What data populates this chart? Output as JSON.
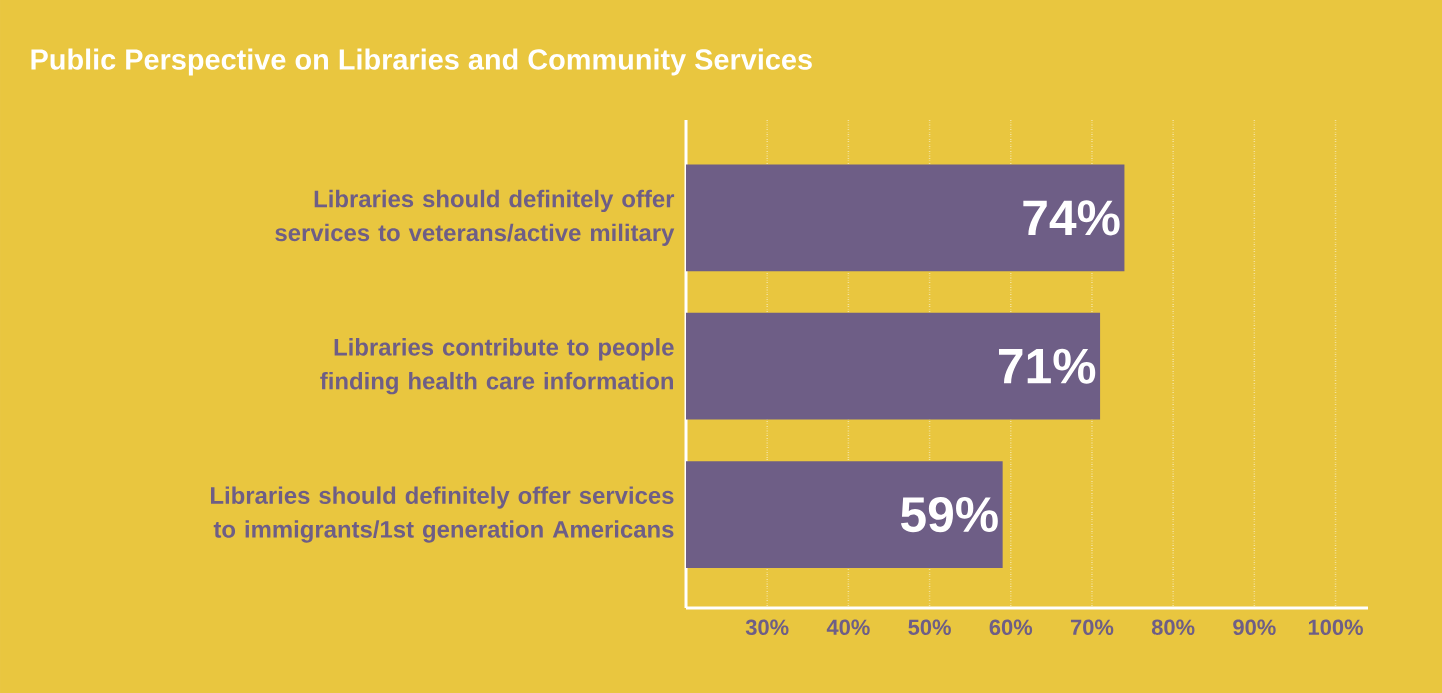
{
  "chart_data": {
    "type": "bar",
    "orientation": "horizontal",
    "title": "Public Perspective on Libraries and Community Services",
    "categories": [
      "Libraries should definitely offer services to veterans/active military",
      "Libraries contribute to people finding health care information",
      "Libraries should definitely offer services to immigrants/1st generation Americans"
    ],
    "values": [
      74,
      71,
      59
    ],
    "value_labels": [
      "74%",
      "71%",
      "59%"
    ],
    "color": "#6e5e86",
    "xlim": [
      20,
      104
    ],
    "xticks": [
      {
        "value": 30,
        "label": "30%"
      },
      {
        "value": 40,
        "label": "40%"
      },
      {
        "value": 50,
        "label": "50%"
      },
      {
        "value": 60,
        "label": "60%"
      },
      {
        "value": 70,
        "label": "70%"
      },
      {
        "value": 80,
        "label": "80%"
      },
      {
        "value": 90,
        "label": "90%"
      },
      {
        "value": 100,
        "label": "100%"
      }
    ],
    "grid": "x"
  }
}
